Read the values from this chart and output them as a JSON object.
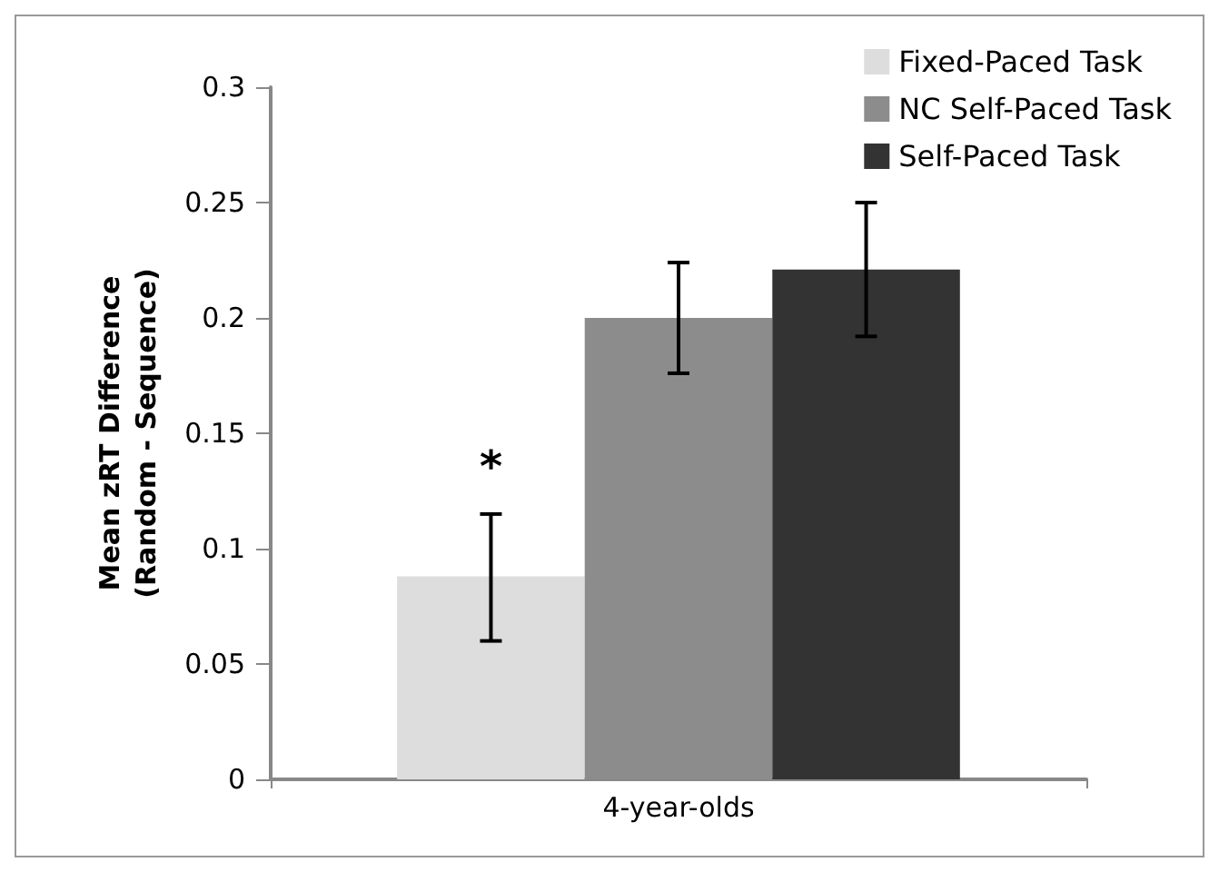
{
  "chart_data": {
    "type": "bar",
    "categories": [
      "4-year-olds"
    ],
    "ylabel": "Mean zRT Difference\n(Random - Sequence)",
    "series": [
      {
        "name": "Fixed-Paced Task",
        "color": "#dddddd",
        "values": [
          0.088
        ],
        "errors": [
          [
            0.06,
            0.115
          ]
        ]
      },
      {
        "name": "NC Self-Paced Task",
        "color": "#8c8c8c",
        "values": [
          0.2
        ],
        "errors": [
          [
            0.176,
            0.224
          ]
        ]
      },
      {
        "name": "Self-Paced Task",
        "color": "#333333",
        "values": [
          0.221
        ],
        "errors": [
          [
            0.192,
            0.25
          ]
        ]
      }
    ],
    "annotations": [
      "*"
    ],
    "ylim": [
      0,
      0.3
    ],
    "yticks": [
      0,
      0.05,
      0.1,
      0.15,
      0.2,
      0.25,
      0.3
    ],
    "grid": false,
    "legend": "top right"
  }
}
